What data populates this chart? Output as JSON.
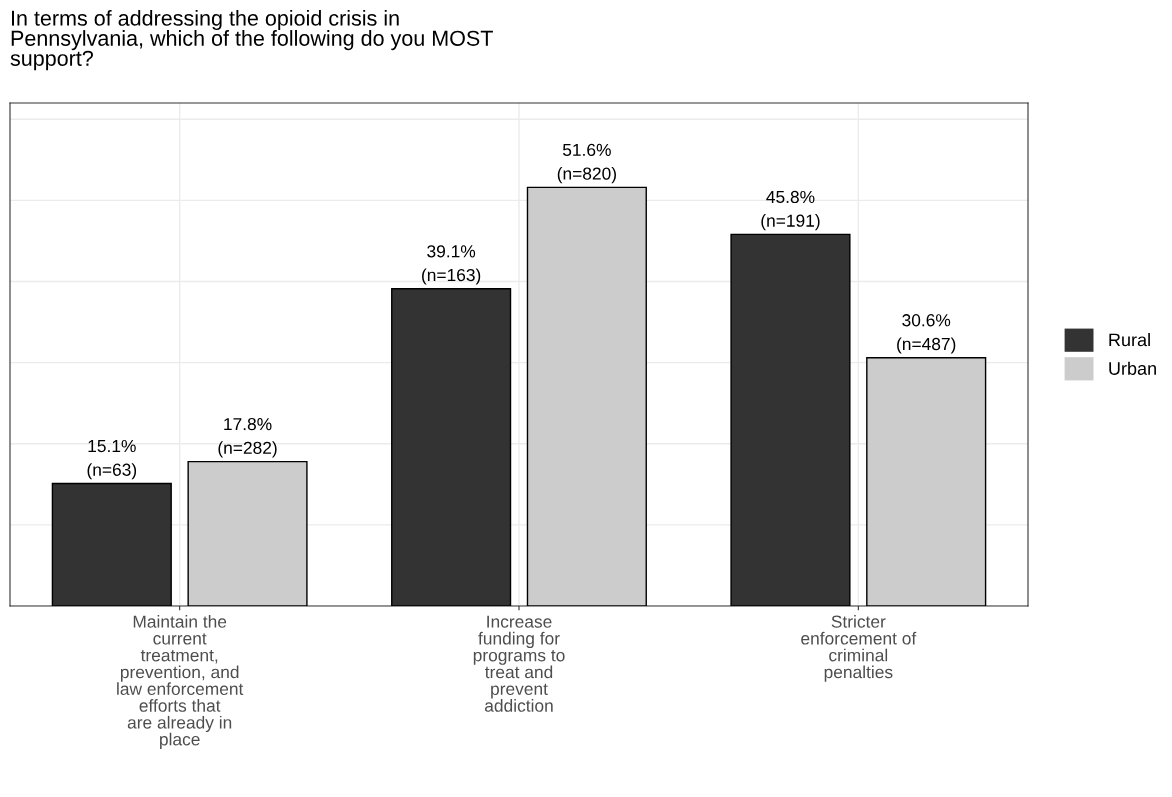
{
  "chart_data": {
    "type": "bar",
    "title": "In terms of addressing the opioid crisis in\nPennsylvania, which of the following do you MOST\nsupport?",
    "categories": [
      "Maintain the\ncurrent\ntreatment,\nprevention, and\nlaw enforcement\nefforts that\nare already in\nplace",
      "Increase\nfunding for\nprograms to\ntreat and\nprevent\naddiction",
      "Stricter\nenforcement of\ncriminal\npenalties"
    ],
    "series": [
      {
        "name": "Rural",
        "color": "#333333",
        "values": [
          15.1,
          39.1,
          45.8
        ],
        "value_labels": [
          "15.1%\n(n=63)",
          "39.1%\n(n=163)",
          "45.8%\n(n=191)"
        ]
      },
      {
        "name": "Urban",
        "color": "#cccccc",
        "values": [
          17.8,
          51.6,
          30.6
        ],
        "value_labels": [
          "17.8%\n(n=282)",
          "51.6%\n(n=820)",
          "30.6%\n(n=487)"
        ]
      }
    ],
    "ylim": [
      0,
      62
    ],
    "yticks": [
      {
        "value": 0,
        "label": null
      },
      {
        "value": 10,
        "label": null
      },
      {
        "value": 20,
        "label": null
      },
      {
        "value": 30,
        "label": null
      },
      {
        "value": 40,
        "label": null
      },
      {
        "value": 50,
        "label": null
      },
      {
        "value": 60,
        "label": null
      }
    ],
    "tick_labels": "x",
    "grid": true,
    "legend": "right"
  }
}
